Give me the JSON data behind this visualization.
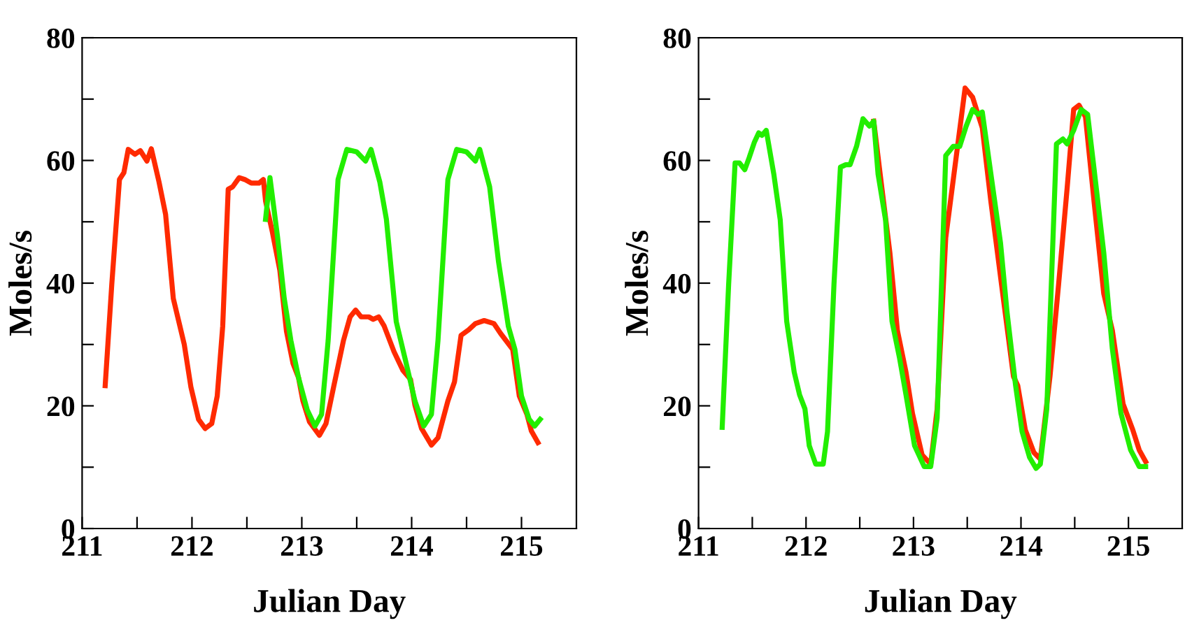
{
  "chart_data": [
    {
      "type": "line",
      "xlabel": "Julian Day",
      "ylabel": "Moles/s",
      "xlim": [
        211,
        215.5
      ],
      "ylim": [
        0,
        80
      ],
      "grid": false,
      "legend": false,
      "marker": "none",
      "line_style": "solid",
      "xticks": [
        211,
        {
          "value": 211.5,
          "label": null
        },
        212,
        {
          "value": 212.5,
          "label": null
        },
        213,
        {
          "value": 213.5,
          "label": null
        },
        214,
        {
          "value": 214.5,
          "label": null
        },
        215
      ],
      "yticks": [
        0,
        {
          "value": 10,
          "label": null
        },
        20,
        {
          "value": 30,
          "label": null
        },
        40,
        {
          "value": 50,
          "label": null
        },
        60,
        {
          "value": 70,
          "label": null
        },
        80
      ],
      "series": [
        {
          "color": "#ff2a00",
          "x": [
            211.21,
            211.27,
            211.34,
            211.38,
            211.42,
            211.48,
            211.53,
            211.59,
            211.63,
            211.7,
            211.76,
            211.83,
            211.89,
            211.93,
            211.99,
            212.06,
            212.12,
            212.18,
            212.23,
            212.28,
            212.33,
            212.37,
            212.43,
            212.48,
            212.54,
            212.61,
            212.65,
            212.67,
            212.73,
            212.8,
            212.86,
            212.92,
            212.97,
            213.01,
            213.07,
            213.16,
            213.22,
            213.29,
            213.38,
            213.44,
            213.49,
            213.54,
            213.61,
            213.65,
            213.7,
            213.75,
            213.84,
            213.92,
            213.99,
            214.03,
            214.09,
            214.18,
            214.24,
            214.33,
            214.39,
            214.45,
            214.52,
            214.58,
            214.66,
            214.75,
            214.81,
            214.92,
            214.98,
            215.05,
            215.09,
            215.15
          ],
          "values": [
            23.3,
            39.8,
            56.9,
            58,
            61.8,
            61,
            61.6,
            59.9,
            61.9,
            56.5,
            51.2,
            37.5,
            33,
            30,
            23.1,
            17.8,
            16.3,
            17.1,
            21.6,
            33,
            55.3,
            55.7,
            57.2,
            56.9,
            56.3,
            56.3,
            56.9,
            53.4,
            48.5,
            42.1,
            32.2,
            26.9,
            24.6,
            20.8,
            17.4,
            15.2,
            17.1,
            23.1,
            30.7,
            34.5,
            35.6,
            34.5,
            34.5,
            34.1,
            34.5,
            33,
            28.8,
            25.8,
            24.3,
            20.1,
            16.3,
            13.6,
            14.8,
            20.8,
            23.9,
            31.5,
            32.4,
            33.4,
            33.9,
            33.4,
            31.8,
            29.2,
            21.6,
            18.6,
            15.9,
            14
          ]
        },
        {
          "color": "#22ee00",
          "x": [
            212.67,
            212.71,
            212.78,
            212.84,
            212.9,
            212.97,
            213.05,
            213.12,
            213.18,
            213.24,
            213.33,
            213.41,
            213.5,
            213.58,
            213.63,
            213.71,
            213.77,
            213.86,
            213.94,
            214.03,
            214.11,
            214.18,
            214.24,
            214.33,
            214.41,
            214.5,
            214.58,
            214.62,
            214.71,
            214.79,
            214.88,
            214.94,
            215.0,
            215.07,
            215.12,
            215.17
          ],
          "values": [
            50.4,
            57.2,
            47.4,
            37.5,
            30.7,
            24.6,
            19.3,
            16.7,
            18.6,
            30.7,
            56.9,
            61.8,
            61.4,
            59.9,
            61.8,
            56.5,
            50.4,
            33.7,
            27.7,
            20.8,
            16.7,
            18.6,
            30.7,
            56.9,
            61.8,
            61.4,
            59.9,
            61.8,
            55.7,
            43.6,
            33,
            29.2,
            21.6,
            17.8,
            16.7,
            17.8
          ]
        }
      ]
    },
    {
      "type": "line",
      "xlabel": "Julian Day",
      "ylabel": "Moles/s",
      "xlim": [
        211,
        215.5
      ],
      "ylim": [
        0,
        80
      ],
      "grid": false,
      "legend": false,
      "marker": "none",
      "line_style": "solid",
      "xticks": [
        211,
        {
          "value": 211.5,
          "label": null
        },
        212,
        {
          "value": 212.5,
          "label": null
        },
        213,
        {
          "value": 213.5,
          "label": null
        },
        214,
        {
          "value": 214.5,
          "label": null
        },
        215
      ],
      "yticks": [
        0,
        {
          "value": 10,
          "label": null
        },
        20,
        {
          "value": 30,
          "label": null
        },
        40,
        {
          "value": 50,
          "label": null
        },
        60,
        {
          "value": 70,
          "label": null
        },
        80
      ],
      "series": [
        {
          "color": "#ff2a00",
          "x": [
            212.63,
            212.7,
            212.78,
            212.85,
            212.93,
            212.99,
            213.08,
            213.16,
            213.22,
            213.3,
            213.41,
            213.48,
            213.55,
            213.64,
            213.72,
            213.83,
            213.93,
            213.97,
            214.04,
            214.12,
            214.18,
            214.27,
            214.35,
            214.43,
            214.49,
            214.54,
            214.6,
            214.68,
            214.77,
            214.85,
            214.95,
            215.04,
            215.1,
            215.16
          ],
          "values": [
            66.4,
            56.3,
            45,
            32.3,
            25.5,
            18.8,
            12,
            10.5,
            19.5,
            47.4,
            62.3,
            71.8,
            70.3,
            65.3,
            53.3,
            38.3,
            24.8,
            23.3,
            16.1,
            12.4,
            11.3,
            24.8,
            39.8,
            55.6,
            68.3,
            69,
            67.1,
            53.3,
            38.3,
            32.3,
            20.3,
            16.1,
            12.8,
            10.9
          ]
        },
        {
          "color": "#22ee00",
          "x": [
            211.22,
            211.28,
            211.34,
            211.38,
            211.43,
            211.47,
            211.52,
            211.56,
            211.59,
            211.63,
            211.7,
            211.76,
            211.82,
            211.89,
            211.94,
            211.99,
            212.03,
            212.09,
            212.16,
            212.2,
            212.26,
            212.32,
            212.37,
            212.41,
            212.47,
            212.53,
            212.59,
            212.63,
            212.67,
            212.74,
            212.8,
            212.87,
            212.93,
            213.01,
            213.1,
            213.16,
            213.22,
            213.3,
            213.37,
            213.43,
            213.49,
            213.55,
            213.6,
            213.64,
            213.72,
            213.81,
            213.87,
            213.95,
            214.01,
            214.08,
            214.14,
            214.18,
            214.24,
            214.33,
            214.39,
            214.43,
            214.49,
            214.56,
            214.62,
            214.68,
            214.77,
            214.85,
            214.93,
            215.02,
            215.1,
            215.16
          ],
          "values": [
            16.5,
            39.8,
            59.6,
            59.6,
            58.5,
            60.4,
            63,
            64.5,
            64.1,
            64.9,
            57.8,
            50.3,
            33.8,
            25.5,
            21.8,
            19.5,
            13.5,
            10.5,
            10.5,
            15.8,
            39.8,
            58.9,
            59.3,
            59.3,
            62.3,
            66.8,
            65.6,
            66.4,
            57.8,
            50.3,
            33.8,
            27.8,
            21.8,
            13.5,
            10.1,
            10.1,
            18,
            60.8,
            62.3,
            62.3,
            65.6,
            68.3,
            67.5,
            67.9,
            57.8,
            46.5,
            35.3,
            23.3,
            15.8,
            11.6,
            9.8,
            10.5,
            19.5,
            62.7,
            63.5,
            62.7,
            64.9,
            68.3,
            67.5,
            58.6,
            45,
            29.3,
            18.8,
            12.8,
            10.1,
            10.1
          ]
        }
      ]
    }
  ]
}
